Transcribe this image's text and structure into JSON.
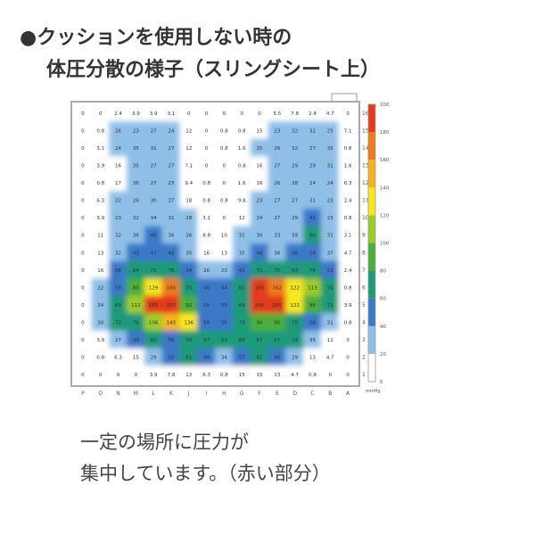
{
  "title_line1": "●クッションを使用しない時の",
  "title_line2": "体圧分散の様子（スリングシート上）",
  "caption_line1": "一定の場所に圧力が",
  "caption_line2": "集中しています。（赤い部分）",
  "chart_data": {
    "type": "heatmap",
    "title": "",
    "x_labels": [
      "P",
      "O",
      "N",
      "M",
      "L",
      "K",
      "J",
      "I",
      "H",
      "G",
      "F",
      "E",
      "D",
      "C",
      "B",
      "A"
    ],
    "y_labels": [
      "16",
      "15",
      "14",
      "13",
      "12",
      "11",
      "10",
      "9",
      "8",
      "7",
      "6",
      "5",
      "4",
      "3",
      "2",
      "1"
    ],
    "values": [
      [
        0,
        0,
        2.4,
        3.9,
        3.9,
        3.1,
        0,
        0,
        0,
        0,
        0,
        5.5,
        7.8,
        2.4,
        4.7,
        0
      ],
      [
        0,
        0.8,
        26,
        23,
        27,
        24,
        12,
        0,
        0.8,
        0.8,
        15,
        23,
        32,
        32,
        25,
        7.1
      ],
      [
        0,
        3.1,
        24,
        35,
        31,
        27,
        12,
        0,
        0.8,
        1.6,
        25,
        26,
        32,
        27,
        35,
        0.8
      ],
      [
        0,
        3.9,
        16,
        35,
        27,
        27,
        7.1,
        0,
        0,
        0.8,
        16,
        27,
        29,
        29,
        31,
        1.6
      ],
      [
        0,
        0.8,
        17,
        36,
        27,
        23,
        9.4,
        0.8,
        0,
        1.6,
        16,
        26,
        28,
        24,
        24,
        6.3
      ],
      [
        0,
        6.3,
        22,
        26,
        30,
        27,
        18,
        0.8,
        0.8,
        9.8,
        23,
        27,
        27,
        31,
        23,
        2.4
      ],
      [
        0,
        3.9,
        23,
        32,
        34,
        31,
        28,
        3.1,
        0,
        12,
        24,
        27,
        29,
        41,
        23,
        0.8
      ],
      [
        0,
        11,
        32,
        38,
        40,
        36,
        26,
        8.8,
        10,
        31,
        30,
        33,
        39,
        60,
        31,
        3.1
      ],
      [
        0,
        13,
        32,
        43,
        47,
        45,
        35,
        16,
        13,
        35,
        46,
        36,
        46,
        59,
        37,
        4.7
      ],
      [
        0,
        16,
        58,
        64,
        71,
        76,
        54,
        26,
        23,
        41,
        71,
        75,
        63,
        76,
        53,
        2.4
      ],
      [
        0,
        22,
        58,
        80,
        129,
        165,
        75,
        45,
        44,
        65,
        185,
        162,
        122,
        113,
        76,
        0.8
      ],
      [
        0,
        34,
        69,
        112,
        185,
        207,
        92,
        56,
        55,
        69,
        206,
        205,
        122,
        96,
        71,
        3.9
      ],
      [
        0,
        30,
        73,
        75,
        106,
        145,
        136,
        59,
        56,
        79,
        90,
        86,
        79,
        58,
        31,
        0.8
      ],
      [
        0,
        3.9,
        27,
        43,
        60,
        56,
        78,
        67,
        63,
        69,
        67,
        67,
        74,
        35,
        11,
        0
      ],
      [
        0,
        0.8,
        6.3,
        15,
        29,
        52,
        61,
        44,
        34,
        57,
        61,
        49,
        29,
        13,
        4.7,
        0
      ],
      [
        0,
        0,
        0,
        0,
        3.9,
        7.8,
        13,
        6.3,
        0.8,
        15,
        15,
        13,
        4.7,
        0.8,
        0,
        0
      ]
    ],
    "colorbar": {
      "ticks": [
        "0",
        "20",
        "40",
        "60",
        "80",
        "100",
        "120",
        "140",
        "160",
        "180",
        "200"
      ],
      "unit": "mmHg",
      "range": [
        0,
        200
      ],
      "colors": [
        "#ffffff",
        "#8fbfe8",
        "#3a78c8",
        "#1a9a7a",
        "#4caf3a",
        "#9ccc2a",
        "#f6e61a",
        "#f5b21a",
        "#ef7a1a",
        "#e23a1a"
      ]
    }
  }
}
